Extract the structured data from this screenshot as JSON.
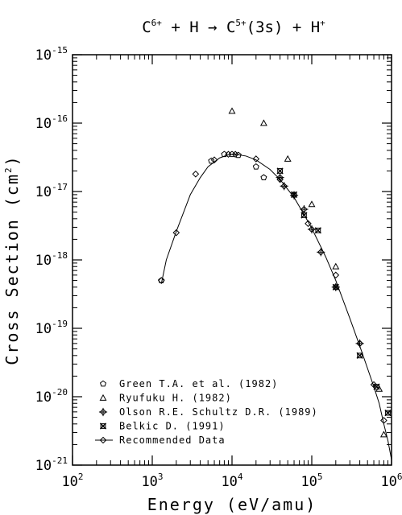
{
  "chart_data": {
    "type": "scatter",
    "title": {
      "parts": [
        {
          "text": "C",
          "sup": "6+"
        },
        {
          "text": " + H → C",
          "sup": "5+"
        },
        {
          "text": "(3s) + H",
          "sup": "+"
        }
      ]
    },
    "xlabel": "Energy (eV/amu)",
    "ylabel": {
      "before": "Cross Section (cm",
      "sup": "2",
      "after": ")"
    },
    "x_scale": "log",
    "y_scale": "log",
    "xlim": [
      100,
      1000000
    ],
    "ylim": [
      1e-21,
      1e-15
    ],
    "x_ticks": [
      {
        "value": 100,
        "base": "10",
        "exp": "2"
      },
      {
        "value": 1000,
        "base": "10",
        "exp": "3"
      },
      {
        "value": 10000,
        "base": "10",
        "exp": "4"
      },
      {
        "value": 100000,
        "base": "10",
        "exp": "5"
      },
      {
        "value": 1000000,
        "base": "10",
        "exp": "6"
      }
    ],
    "y_ticks": [
      {
        "value": 1e-15,
        "base": "10",
        "exp": "-15"
      },
      {
        "value": 1e-16,
        "base": "10",
        "exp": "-16"
      },
      {
        "value": 1e-17,
        "base": "10",
        "exp": "-17"
      },
      {
        "value": 1e-18,
        "base": "10",
        "exp": "-18"
      },
      {
        "value": 1e-19,
        "base": "10",
        "exp": "-19"
      },
      {
        "value": 1e-20,
        "base": "10",
        "exp": "-20"
      },
      {
        "value": 1e-21,
        "base": "10",
        "exp": "-21"
      }
    ],
    "legend_position": "bottom-left",
    "series": [
      {
        "name": "Green T.A. et al. (1982)",
        "marker": "pentagon",
        "points": [
          [
            1300,
            5e-19
          ],
          [
            5500,
            2.8e-17
          ],
          [
            8000,
            3.5e-17
          ],
          [
            10000,
            3.5e-17
          ],
          [
            12000,
            3.4e-17
          ],
          [
            20000,
            2.3e-17
          ],
          [
            25000,
            1.6e-17
          ]
        ]
      },
      {
        "name": "Ryufuku H. (1982)",
        "marker": "triangle",
        "points": [
          [
            10000,
            1.5e-16
          ],
          [
            25000,
            1e-16
          ],
          [
            50000,
            3e-17
          ],
          [
            100000,
            6.5e-18
          ],
          [
            200000,
            8e-19
          ],
          [
            700000,
            1.3e-20
          ],
          [
            800000,
            2.8e-21
          ]
        ]
      },
      {
        "name": "Olson R.E. Schultz D.R. (1989)",
        "marker": "plus-diamond",
        "points": [
          [
            40000,
            1.6e-17
          ],
          [
            45000,
            1.2e-17
          ],
          [
            60000,
            8.8e-18
          ],
          [
            80000,
            5.5e-18
          ],
          [
            100000,
            2.8e-18
          ],
          [
            130000,
            1.3e-18
          ],
          [
            200000,
            4e-19
          ],
          [
            400000,
            6e-20
          ]
        ]
      },
      {
        "name": "Belkic D. (1991)",
        "marker": "x-square",
        "points": [
          [
            40000,
            2e-17
          ],
          [
            60000,
            9e-18
          ],
          [
            80000,
            4.5e-18
          ],
          [
            120000,
            2.7e-18
          ],
          [
            200000,
            4e-19
          ],
          [
            400000,
            4e-20
          ],
          [
            650000,
            1.4e-20
          ],
          [
            900000,
            5.8e-21
          ]
        ]
      },
      {
        "name": "Recommended Data",
        "marker": "diamond-line",
        "points": [
          [
            1300,
            5e-19
          ],
          [
            2000,
            2.5e-18
          ],
          [
            3500,
            1.8e-17
          ],
          [
            6000,
            2.9e-17
          ],
          [
            9000,
            3.5e-17
          ],
          [
            11000,
            3.5e-17
          ],
          [
            20000,
            3e-17
          ],
          [
            40000,
            1.5e-17
          ],
          [
            90000,
            3.4e-18
          ],
          [
            200000,
            6e-19
          ],
          [
            400000,
            6e-20
          ],
          [
            600000,
            1.5e-20
          ],
          [
            800000,
            4.5e-21
          ]
        ],
        "curve": [
          [
            1300,
            4.5e-19
          ],
          [
            1500,
            1e-18
          ],
          [
            2000,
            2.6e-18
          ],
          [
            3000,
            9e-18
          ],
          [
            4000,
            1.6e-17
          ],
          [
            5000,
            2.3e-17
          ],
          [
            7000,
            3.1e-17
          ],
          [
            9000,
            3.45e-17
          ],
          [
            11000,
            3.5e-17
          ],
          [
            15000,
            3.3e-17
          ],
          [
            20000,
            2.9e-17
          ],
          [
            30000,
            2.1e-17
          ],
          [
            40000,
            1.5e-17
          ],
          [
            60000,
            8.2e-18
          ],
          [
            80000,
            4.6e-18
          ],
          [
            100000,
            2.9e-18
          ],
          [
            150000,
            1.1e-18
          ],
          [
            200000,
            5e-19
          ],
          [
            300000,
            1.4e-19
          ],
          [
            400000,
            5.5e-20
          ],
          [
            500000,
            2.6e-20
          ],
          [
            600000,
            1.4e-20
          ],
          [
            700000,
            8e-21
          ],
          [
            800000,
            4e-21
          ],
          [
            900000,
            2.3e-21
          ],
          [
            1000000,
            1.2e-21
          ]
        ]
      }
    ]
  }
}
